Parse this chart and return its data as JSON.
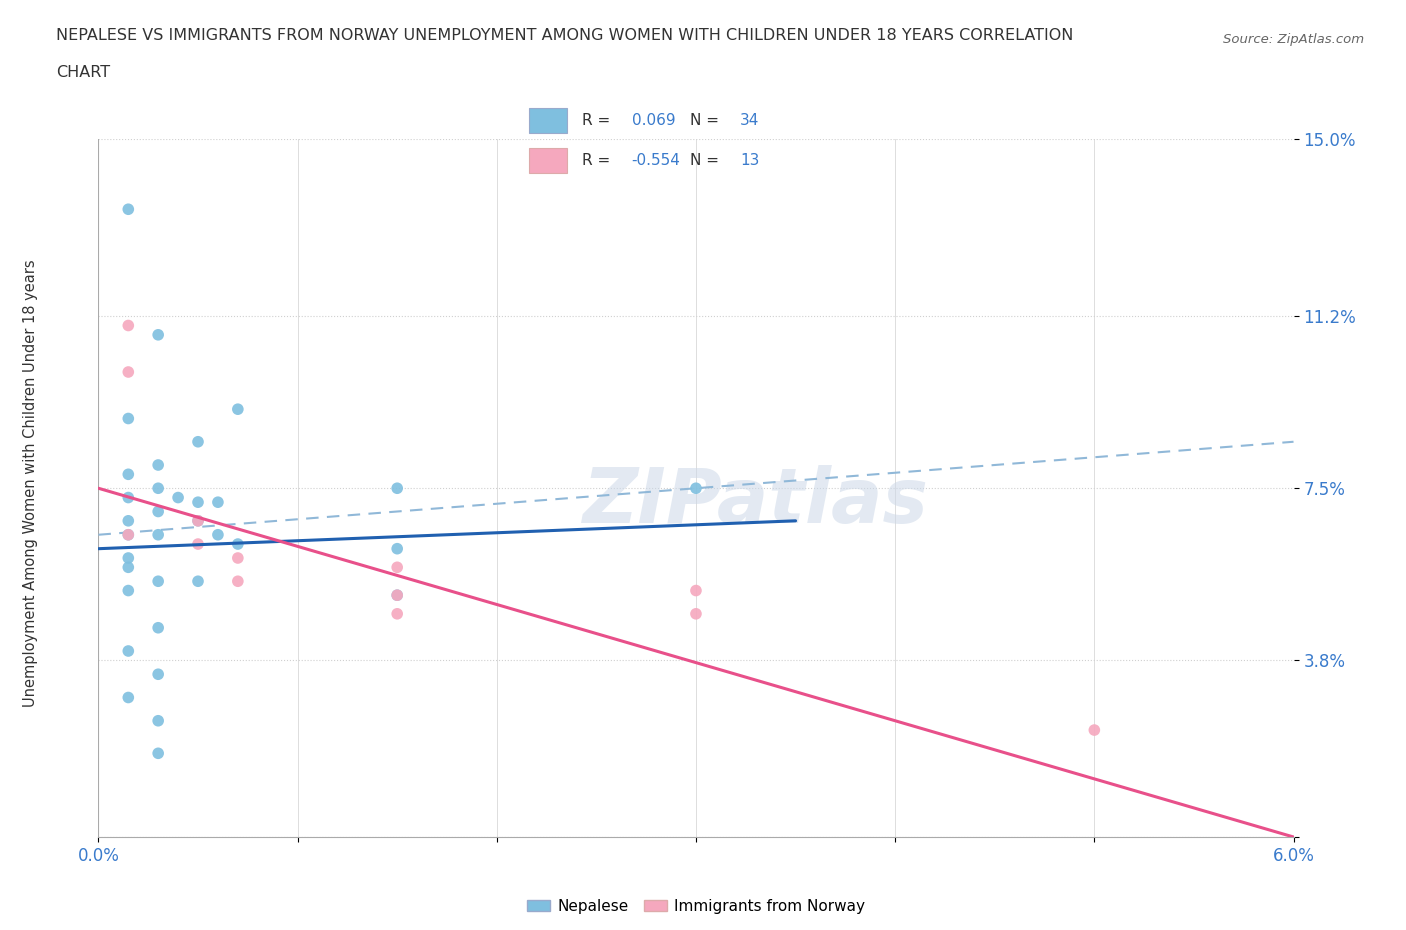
{
  "title_line1": "NEPALESE VS IMMIGRANTS FROM NORWAY UNEMPLOYMENT AMONG WOMEN WITH CHILDREN UNDER 18 YEARS CORRELATION",
  "title_line2": "CHART",
  "source": "Source: ZipAtlas.com",
  "ylabel": "Unemployment Among Women with Children Under 18 years",
  "xlim": [
    0.0,
    6.0
  ],
  "ylim": [
    0.0,
    15.0
  ],
  "yticks": [
    0.0,
    3.8,
    7.5,
    11.2,
    15.0
  ],
  "ytick_labels": [
    "",
    "3.8%",
    "7.5%",
    "11.2%",
    "15.0%"
  ],
  "xtick_vals": [
    0.0,
    1.0,
    2.0,
    3.0,
    4.0,
    5.0,
    6.0
  ],
  "xtick_labels": [
    "0.0%",
    "",
    "",
    "",
    "",
    "",
    "6.0%"
  ],
  "watermark": "ZIPatlas",
  "nepalese_R": "0.069",
  "nepalese_N": "34",
  "norway_R": "-0.554",
  "norway_N": "13",
  "nepalese_color": "#7fbfdf",
  "norway_color": "#f5a8be",
  "nepalese_line_color": "#2060b0",
  "norway_line_color": "#e8508a",
  "dashed_line_color": "#90b8d8",
  "nepalese_scatter": [
    [
      0.15,
      13.5
    ],
    [
      0.3,
      10.8
    ],
    [
      0.15,
      9.0
    ],
    [
      0.5,
      8.5
    ],
    [
      0.7,
      9.2
    ],
    [
      0.3,
      8.0
    ],
    [
      0.15,
      7.8
    ],
    [
      0.3,
      7.5
    ],
    [
      0.15,
      7.3
    ],
    [
      0.4,
      7.3
    ],
    [
      0.5,
      7.2
    ],
    [
      0.6,
      7.2
    ],
    [
      0.3,
      7.0
    ],
    [
      0.15,
      6.8
    ],
    [
      0.5,
      6.8
    ],
    [
      0.15,
      6.5
    ],
    [
      0.3,
      6.5
    ],
    [
      0.6,
      6.5
    ],
    [
      0.7,
      6.3
    ],
    [
      1.5,
      6.2
    ],
    [
      0.15,
      6.0
    ],
    [
      0.15,
      5.8
    ],
    [
      0.3,
      5.5
    ],
    [
      0.5,
      5.5
    ],
    [
      0.15,
      5.3
    ],
    [
      1.5,
      7.5
    ],
    [
      3.0,
      7.5
    ],
    [
      1.5,
      5.2
    ],
    [
      0.3,
      4.5
    ],
    [
      0.15,
      4.0
    ],
    [
      0.3,
      3.5
    ],
    [
      0.15,
      3.0
    ],
    [
      0.3,
      2.5
    ],
    [
      0.3,
      1.8
    ]
  ],
  "norway_scatter": [
    [
      0.15,
      11.0
    ],
    [
      0.15,
      10.0
    ],
    [
      0.5,
      6.8
    ],
    [
      0.5,
      6.3
    ],
    [
      0.7,
      6.0
    ],
    [
      0.7,
      5.5
    ],
    [
      1.5,
      5.8
    ],
    [
      1.5,
      5.2
    ],
    [
      1.5,
      4.8
    ],
    [
      3.0,
      5.3
    ],
    [
      3.0,
      4.8
    ],
    [
      5.0,
      2.3
    ],
    [
      0.15,
      6.5
    ]
  ],
  "nepalese_trend_x": [
    0.0,
    3.5
  ],
  "nepalese_trend_y": [
    6.2,
    6.8
  ],
  "norway_trend_x": [
    0.0,
    6.0
  ],
  "norway_trend_y": [
    7.5,
    0.0
  ],
  "dashed_trend_x": [
    0.0,
    6.0
  ],
  "dashed_trend_y": [
    6.5,
    8.5
  ],
  "background_color": "#ffffff",
  "grid_color": "#d0d0d0",
  "tick_color": "#3a7bcc",
  "legend_box_color": "#ffffff",
  "legend_border_color": "#c0c8d8"
}
